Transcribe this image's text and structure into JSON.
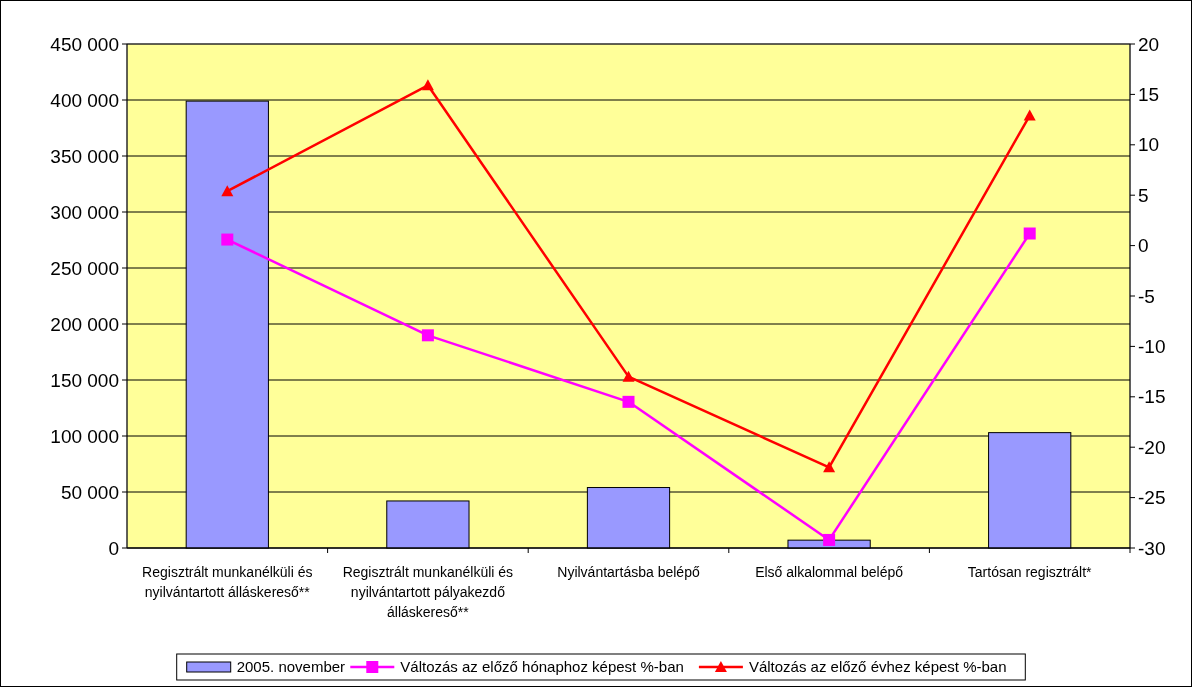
{
  "chart_data": {
    "type": "bar",
    "categories": [
      "Regisztrált munkanélküli és nyilvántartott álláskereső**",
      "Regisztrált munkanélküli és nyilvántartott pályakezdő álláskereső**",
      "Nyilvántartásba belépő",
      "Első alkalommal belépő",
      "Tartósan regisztrált*"
    ],
    "series": [
      {
        "name": "2005. november",
        "color": "#9999ff",
        "values": [
          399000,
          42000,
          54000,
          7000,
          103000
        ]
      },
      {
        "name": "Változás az előző hónaphoz képest %-ban",
        "type": "line",
        "axis": "y2",
        "color": "#ff00ff",
        "marker": "square",
        "values": [
          0.6,
          -8.9,
          -15.5,
          -29.2,
          1.2
        ]
      },
      {
        "name": "Változás az előző évhez képest %-ban",
        "type": "line",
        "axis": "y2",
        "color": "#ff0000",
        "marker": "triangle",
        "values": [
          5.4,
          15.9,
          -13.0,
          -22.0,
          12.9
        ]
      }
    ],
    "ylim": [
      0,
      450000
    ],
    "yticks": [
      {
        "value": 0,
        "label": "0"
      },
      {
        "value": 50000,
        "label": "50 000"
      },
      {
        "value": 100000,
        "label": "100 000"
      },
      {
        "value": 150000,
        "label": "150 000"
      },
      {
        "value": 200000,
        "label": "200 000"
      },
      {
        "value": 250000,
        "label": "250 000"
      },
      {
        "value": 300000,
        "label": "300 000"
      },
      {
        "value": 350000,
        "label": "350 000"
      },
      {
        "value": 400000,
        "label": "400 000"
      },
      {
        "value": 450000,
        "label": "450 000"
      }
    ],
    "y2lim": [
      -30,
      20
    ],
    "y2ticks": [
      -30,
      -25,
      -20,
      -15,
      -10,
      -5,
      0,
      5,
      10,
      15,
      20
    ],
    "grid": "y",
    "legend": "bottom"
  }
}
